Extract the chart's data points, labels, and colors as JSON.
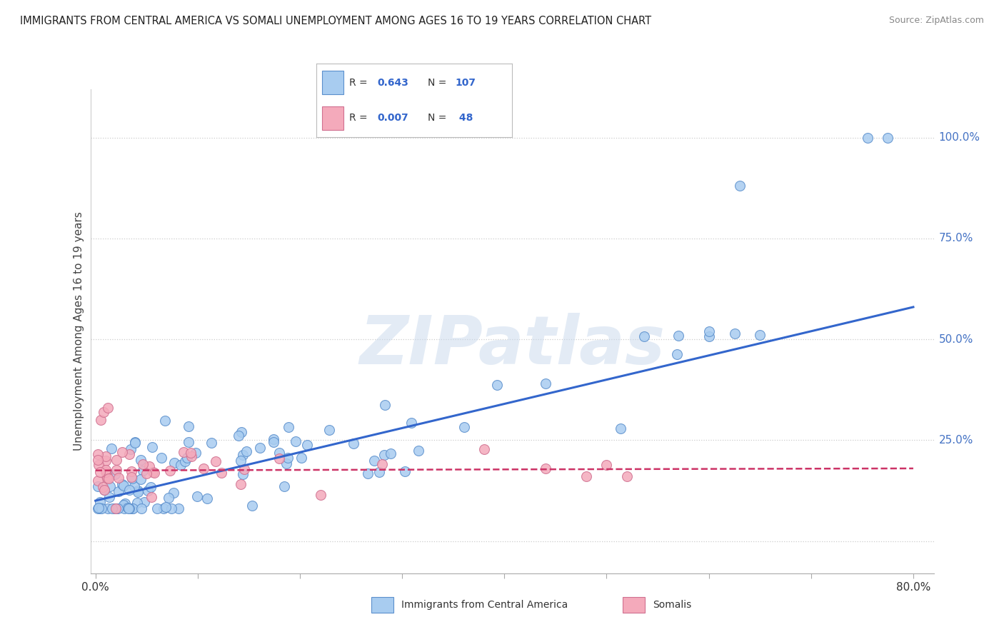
{
  "title": "IMMIGRANTS FROM CENTRAL AMERICA VS SOMALI UNEMPLOYMENT AMONG AGES 16 TO 19 YEARS CORRELATION CHART",
  "source": "Source: ZipAtlas.com",
  "ylabel": "Unemployment Among Ages 16 to 19 years",
  "legend_label_blue": "Immigrants from Central America",
  "legend_label_pink": "Somalis",
  "R_blue": "0.643",
  "N_blue": "107",
  "R_pink": "0.007",
  "N_pink": " 48",
  "xlim": [
    -0.005,
    0.82
  ],
  "ylim": [
    -0.08,
    1.12
  ],
  "color_blue": "#A8CCF0",
  "color_pink": "#F4AABB",
  "edge_blue": "#5B8FCC",
  "edge_pink": "#D07090",
  "trend_color_blue": "#3366CC",
  "trend_color_pink": "#CC3366",
  "watermark": "ZIPatlas",
  "grid_color": "#CCCCCC",
  "ytick_color": "#4472C4",
  "xtick_color": "#333333",
  "background_color": "#FFFFFF",
  "blue_trend_x0": 0.0,
  "blue_trend_y0": 0.1,
  "blue_trend_x1": 0.8,
  "blue_trend_y1": 0.58,
  "pink_trend_x0": 0.0,
  "pink_trend_y0": 0.175,
  "pink_trend_x1": 0.8,
  "pink_trend_y1": 0.18
}
